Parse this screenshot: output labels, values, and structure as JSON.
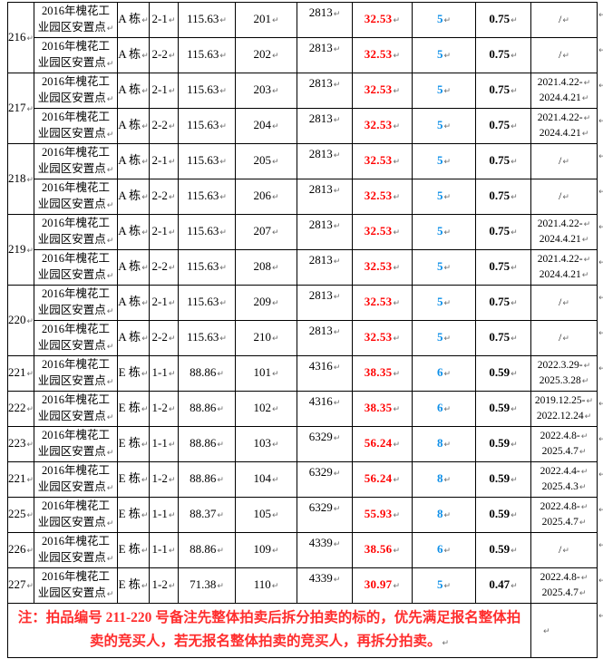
{
  "colors": {
    "premium_red": "#ff0000",
    "count_blue": "#0d8fe8",
    "note_red": "#ff2d2d",
    "border_black": "#000000",
    "paragraph_mark_gray": "#6b6b6b"
  },
  "marks": {
    "cell_end": "↵",
    "row_end": "↵"
  },
  "table": {
    "rows": [
      {
        "lot": "216",
        "span": 2,
        "name": [
          "2016年槐花工",
          "业园区安置点"
        ],
        "building": "A 栋",
        "unit": "2-1",
        "area": "115.63",
        "room": "201",
        "price": "2813",
        "premium": "32.53",
        "count": "5",
        "factor": "0.75",
        "dates": [
          "/"
        ]
      },
      {
        "lot": null,
        "name": [
          "2016年槐花工",
          "业园区安置点"
        ],
        "building": "A 栋",
        "unit": "2-2",
        "area": "115.63",
        "room": "202",
        "price": "2813",
        "premium": "32.53",
        "count": "5",
        "factor": "0.75",
        "dates": [
          "/"
        ]
      },
      {
        "lot": "217",
        "span": 2,
        "name": [
          "2016年槐花工",
          "业园区安置点"
        ],
        "building": "A 栋",
        "unit": "2-1",
        "area": "115.63",
        "room": "203",
        "price": "2813",
        "premium": "32.53",
        "count": "5",
        "factor": "0.75",
        "dates": [
          "2021.4.22-",
          "2024.4.21"
        ]
      },
      {
        "lot": null,
        "name": [
          "2016年槐花工",
          "业园区安置点"
        ],
        "building": "A 栋",
        "unit": "2-2",
        "area": "115.63",
        "room": "204",
        "price": "2813",
        "premium": "32.53",
        "count": "5",
        "factor": "0.75",
        "dates": [
          "2021.4.22-",
          "2024.4.21"
        ]
      },
      {
        "lot": "218",
        "span": 2,
        "name": [
          "2016年槐花工",
          "业园区安置点"
        ],
        "building": "A 栋",
        "unit": "2-1",
        "area": "115.63",
        "room": "205",
        "price": "2813",
        "premium": "32.53",
        "count": "5",
        "factor": "0.75",
        "dates": [
          "/"
        ]
      },
      {
        "lot": null,
        "name": [
          "2016年槐花工",
          "业园区安置点"
        ],
        "building": "A 栋",
        "unit": "2-2",
        "area": "115.63",
        "room": "206",
        "price": "2813",
        "premium": "32.53",
        "count": "5",
        "factor": "0.75",
        "dates": [
          "/"
        ]
      },
      {
        "lot": "219",
        "span": 2,
        "name": [
          "2016年槐花工",
          "业园区安置点"
        ],
        "building": "A 栋",
        "unit": "2-1",
        "area": "115.63",
        "room": "207",
        "price": "2813",
        "premium": "32.53",
        "count": "5",
        "factor": "0.75",
        "dates": [
          "2021.4.22-",
          "2024.4.21"
        ]
      },
      {
        "lot": null,
        "name": [
          "2016年槐花工",
          "业园区安置点"
        ],
        "building": "A 栋",
        "unit": "2-2",
        "area": "115.63",
        "room": "208",
        "price": "2813",
        "premium": "32.53",
        "count": "5",
        "factor": "0.75",
        "dates": [
          "2021.4.22-",
          "2024.4.21"
        ]
      },
      {
        "lot": "220",
        "span": 2,
        "name": [
          "2016年槐花工",
          "业园区安置点"
        ],
        "building": "A 栋",
        "unit": "2-1",
        "area": "115.63",
        "room": "209",
        "price": "2813",
        "premium": "32.53",
        "count": "5",
        "factor": "0.75",
        "dates": [
          "/"
        ]
      },
      {
        "lot": null,
        "name": [
          "2016年槐花工",
          "业园区安置点"
        ],
        "building": "A 栋",
        "unit": "2-2",
        "area": "115.63",
        "room": "210",
        "price": "2813",
        "premium": "32.53",
        "count": "5",
        "factor": "0.75",
        "dates": [
          "/"
        ]
      },
      {
        "lot": "221",
        "name": [
          "2016年槐花工",
          "业园区安置点"
        ],
        "building": "E 栋",
        "unit": "1-1",
        "area": "88.86",
        "room": "101",
        "price": "4316",
        "premium": "38.35",
        "count": "6",
        "factor": "0.59",
        "dates": [
          "2022.3.29-",
          "2025.3.28"
        ]
      },
      {
        "lot": "222",
        "name": [
          "2016年槐花工",
          "业园区安置点"
        ],
        "building": "E 栋",
        "unit": "1-2",
        "area": "88.86",
        "room": "102",
        "price": "4316",
        "premium": "38.35",
        "count": "6",
        "factor": "0.59",
        "dates": [
          "2019.12.25-",
          "2022.12.24"
        ]
      },
      {
        "lot": "223",
        "name": [
          "2016年槐花工",
          "业园区安置点"
        ],
        "building": "E 栋",
        "unit": "1-1",
        "area": "88.86",
        "room": "103",
        "price": "6329",
        "premium": "56.24",
        "count": "8",
        "factor": "0.59",
        "dates": [
          "2022.4.8-",
          "2025.4.7"
        ]
      },
      {
        "lot": "221",
        "name": [
          "2016年槐花工",
          "业园区安置点"
        ],
        "building": "E 栋",
        "unit": "1-2",
        "area": "88.86",
        "room": "104",
        "price": "6329",
        "premium": "56.24",
        "count": "8",
        "factor": "0.59",
        "dates": [
          "2022.4.4-",
          "2025.4.3"
        ]
      },
      {
        "lot": "225",
        "name": [
          "2016年槐花工",
          "业园区安置点"
        ],
        "building": "E 栋",
        "unit": "1-1",
        "area": "88.37",
        "room": "105",
        "price": "6329",
        "premium": "55.93",
        "count": "8",
        "factor": "0.59",
        "dates": [
          "2022.4.8-",
          "2025.4.7"
        ]
      },
      {
        "lot": "226",
        "name": [
          "2016年槐花工",
          "业园区安置点"
        ],
        "building": "E 栋",
        "unit": "1-1",
        "area": "88.86",
        "room": "109",
        "price": "4339",
        "premium": "38.56",
        "count": "6",
        "factor": "0.59",
        "dates": [
          "/"
        ]
      },
      {
        "lot": "227",
        "name": [
          "2016年槐花工",
          "业园区安置点"
        ],
        "building": "E 栋",
        "unit": "1-2",
        "area": "71.38",
        "room": "110",
        "price": "4339",
        "premium": "30.97",
        "count": "5",
        "factor": "0.47",
        "dates": [
          "2022.4.8-",
          "2025.4.7"
        ]
      }
    ]
  },
  "note": {
    "text": "注：拍品编号 211-220 号备注先整体拍卖后拆分拍卖的标的，优先满足报名整体拍卖的竞买人，若无报名整体拍卖的竞买人，再拆分拍卖。"
  }
}
